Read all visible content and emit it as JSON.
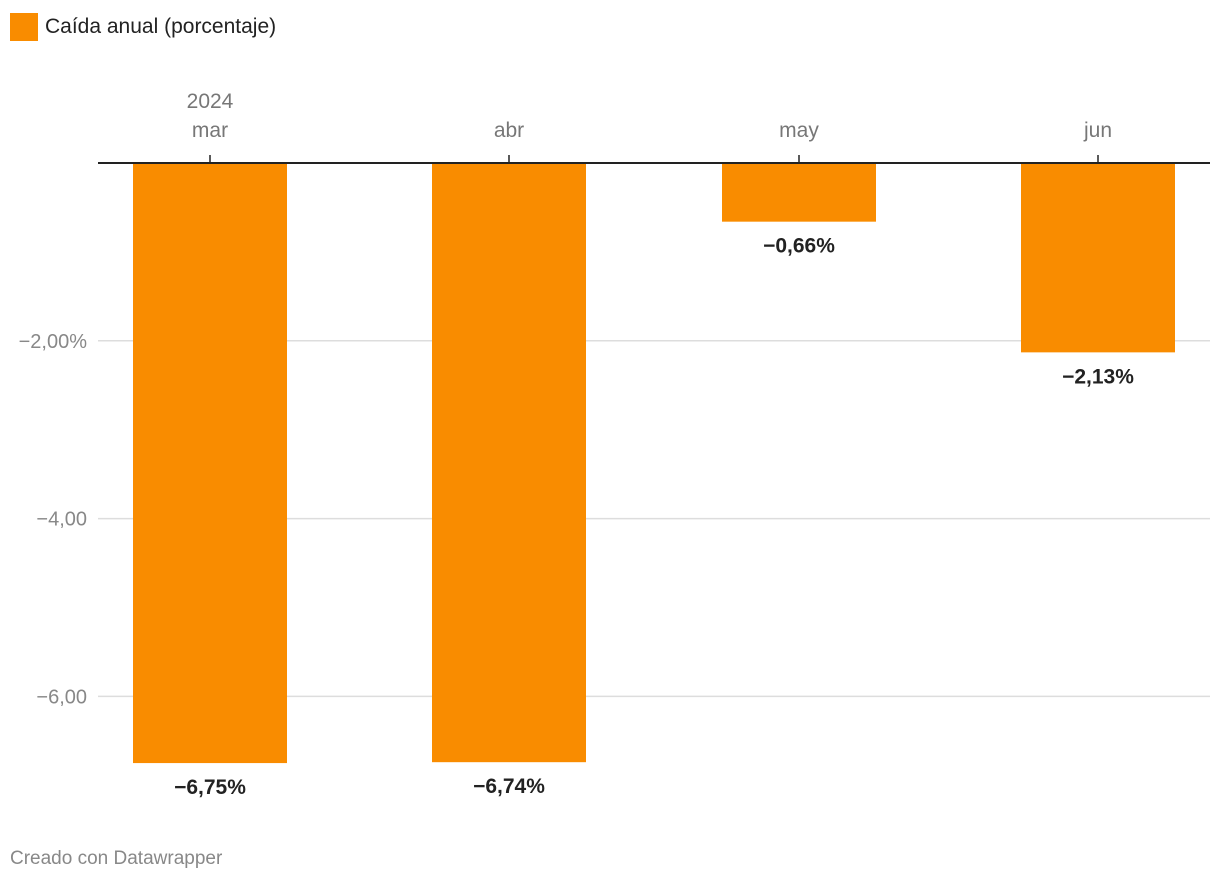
{
  "legend": {
    "label": "Caída anual (porcentaje)"
  },
  "footer": {
    "text": "Creado con Datawrapper"
  },
  "colors": {
    "bar": "#f98c00",
    "axis": "#222222",
    "grid": "#dddddd",
    "tick_text": "#888888",
    "category_text": "#777777",
    "value_label": "#222222"
  },
  "chart_data": {
    "type": "bar",
    "categories": [
      "mar",
      "abr",
      "may",
      "jun"
    ],
    "category_year_label": "2024",
    "series": [
      {
        "name": "Caída anual (porcentaje)",
        "values": [
          -6.75,
          -6.74,
          -0.66,
          -2.13
        ]
      }
    ],
    "value_labels": [
      "−6,75%",
      "−6,74%",
      "−0,66%",
      "−2,13%"
    ],
    "y_ticks": [
      {
        "value": -2,
        "label": "−2,00%"
      },
      {
        "value": -4,
        "label": "−4,00"
      },
      {
        "value": -6,
        "label": "−6,00"
      }
    ],
    "ylim": [
      -6.75,
      0
    ],
    "grid": true,
    "x_axis_position": "top",
    "legend_position": "top-left"
  }
}
